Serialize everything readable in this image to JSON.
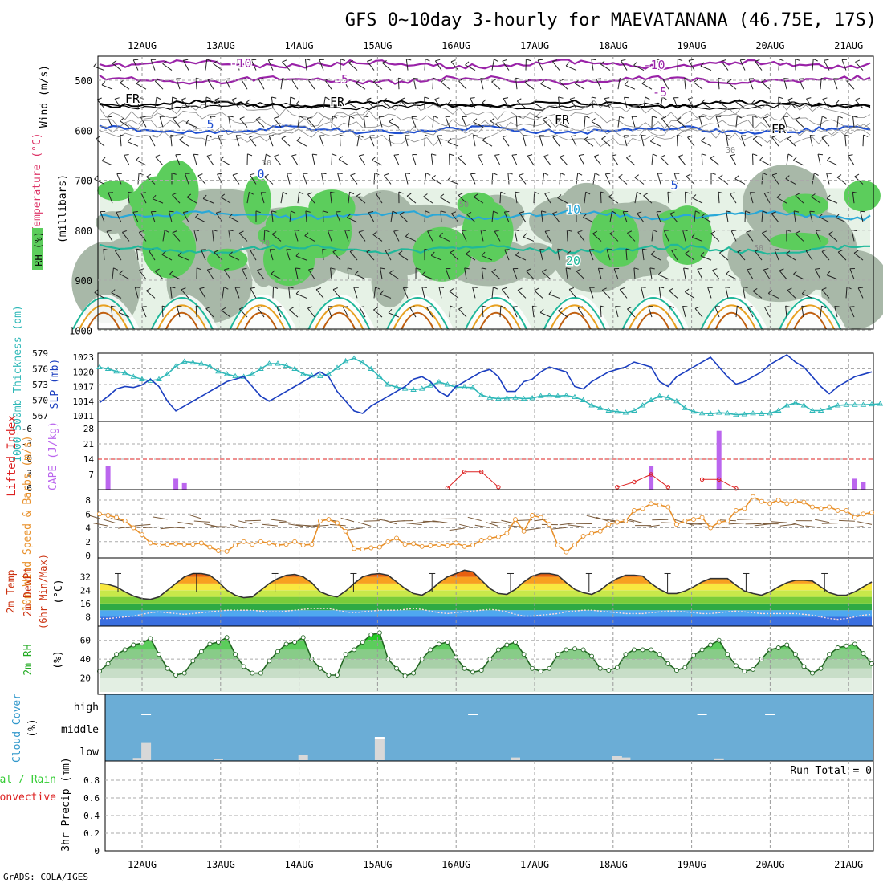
{
  "title": "GFS 0~10day 3-hourly for MAEVATANANA (46.75E, 17S)",
  "footer": "GrADS: COLA/IGES",
  "dates": [
    "12AUG",
    "13AUG",
    "14AUG",
    "15AUG",
    "16AUG",
    "17AUG",
    "18AUG",
    "19AUG",
    "20AUG",
    "21AUG"
  ],
  "colors": {
    "rh_green": "#5ccd5c",
    "rh_gray": "#a8b8a8",
    "rh_pale": "#e6f2e6",
    "temp_purple": "#9a23a8",
    "fr_black": "#000000",
    "temp_blue": "#1f4fd0",
    "temp_cyan": "#29a8d8",
    "temp_teal": "#20b89a",
    "temp_orange": "#e8a020",
    "slp": "#1c3fc0",
    "thickness": "#2fb8b8",
    "cape": "#bb66ee",
    "li": "#dd2222",
    "wind": "#e8902a",
    "barb": "#7a5a3a",
    "cloud": "#6badd6",
    "cloud_bar": "#d8d8d8"
  },
  "chart_data": [
    {
      "type": "heatmap",
      "panel": "upper",
      "ylabel": "(millibars)",
      "side_labels": [
        "Wind (m/s)",
        "Temperature (°C)",
        "RH (%)"
      ],
      "y_ticks": [
        500,
        600,
        700,
        800,
        900,
        1000
      ],
      "ylim": [
        1000,
        450
      ],
      "contour_labels": [
        "-10",
        "-5",
        "FR",
        "5",
        "10",
        "20",
        "0",
        "30",
        "50",
        "70"
      ],
      "isotherms": [
        {
          "label": "-10",
          "level_mb": 468
        },
        {
          "label": "-5",
          "level_mb": 500
        },
        {
          "label": "FR",
          "level_mb": 548
        },
        {
          "label": "5",
          "level_mb": 600
        },
        {
          "label": "10",
          "level_mb": 770
        },
        {
          "label": "20",
          "level_mb": 838
        }
      ]
    },
    {
      "type": "line",
      "panel": "pressure",
      "ylabel_left": "1000-500mb Thickness (dm)",
      "ylabel_right": "SLP (mb)",
      "y_left_ticks": [
        567,
        570,
        573,
        576,
        579
      ],
      "y_right_ticks": [
        1011,
        1014,
        1017,
        1020,
        1023
      ],
      "series": [
        {
          "name": "SLP",
          "values": [
            1013.7,
            1015,
            1016.5,
            1017,
            1016.8,
            1017.3,
            1018.5,
            1017,
            1014,
            1012,
            1013,
            1014,
            1015,
            1016,
            1017,
            1018,
            1018.5,
            1019,
            1017,
            1015,
            1014,
            1015,
            1016,
            1017,
            1018,
            1019,
            1020,
            1019,
            1016,
            1014,
            1012,
            1011.5,
            1013,
            1014,
            1015,
            1016,
            1017,
            1018.5,
            1019,
            1018,
            1016,
            1015,
            1017,
            1018,
            1019,
            1020,
            1020.5,
            1019,
            1016,
            1016,
            1018,
            1018.5,
            1020,
            1021,
            1020.5,
            1020,
            1017,
            1016.5,
            1018,
            1019,
            1020,
            1020.5,
            1021,
            1022,
            1021.5,
            1021,
            1018,
            1017,
            1019,
            1020,
            1021,
            1022,
            1023,
            1021,
            1019,
            1017.5,
            1018,
            1019,
            1020,
            1021.5,
            1022.5,
            1023.5,
            1022,
            1021,
            1019,
            1017,
            1015.5,
            1017,
            1018,
            1019,
            1019.5,
            1020,
            1020
          ]
        },
        {
          "name": "Thickness",
          "values": [
            576.3,
            576,
            575.5,
            575.2,
            574.5,
            574,
            573.7,
            574,
            575,
            576.5,
            577.4,
            577.2,
            577,
            576.5,
            575.5,
            575,
            574.6,
            574.5,
            575,
            576,
            577,
            577,
            576.6,
            576,
            575,
            574.7,
            574.6,
            575,
            576.2,
            577.5,
            578,
            577.2,
            576,
            574.5,
            573,
            572.5,
            572.2,
            572,
            572.2,
            572.8,
            573.5,
            573,
            572.5,
            572.5,
            572.4,
            571,
            570.5,
            570.3,
            570.4,
            570.5,
            570.3,
            570.4,
            570.8,
            570.9,
            570.8,
            570.9,
            570.6,
            570,
            569,
            568.5,
            568,
            567.8,
            567.6,
            568,
            569,
            570,
            570.8,
            570.5,
            569.8,
            568.5,
            567.8,
            567.5,
            567.4,
            567.6,
            567.5,
            567.2,
            567.3,
            567.5,
            567.4,
            567.5,
            568,
            569,
            569.5,
            569,
            568,
            568,
            568.5,
            569,
            569.1,
            569.1,
            569.1,
            569.2,
            569.3
          ]
        }
      ]
    },
    {
      "type": "bar",
      "panel": "cape_li",
      "ylabel_left": "Lifted Index",
      "ylabel_right": "CAPE (J/kg)",
      "y_left_ticks": [
        "-6",
        "-3",
        "0",
        "3",
        "6"
      ],
      "y_right_ticks": [
        7,
        14,
        21,
        28
      ],
      "series": [
        {
          "name": "CAPE",
          "values": [
            {
              "x": 0.5,
              "v": 11
            },
            {
              "x": 4.5,
              "v": 5
            },
            {
              "x": 5.0,
              "v": 3
            },
            {
              "x": 32.5,
              "v": 11
            },
            {
              "x": 36.5,
              "v": 27
            },
            {
              "x": 44.5,
              "v": 5
            },
            {
              "x": 45.0,
              "v": 3.5
            }
          ]
        },
        {
          "name": "Lifted Index",
          "values": [
            {
              "x": 21,
              "v": 5.7
            },
            {
              "x": 22,
              "v": 2.5
            },
            {
              "x": 23,
              "v": 2.5
            },
            {
              "x": 24,
              "v": 5.5
            },
            {
              "x": 31,
              "v": 5.5
            },
            {
              "x": 32,
              "v": 4.5
            },
            {
              "x": 33,
              "v": 3.0
            },
            {
              "x": 34,
              "v": 5.5
            },
            {
              "x": 36,
              "v": 4.0
            },
            {
              "x": 37,
              "v": 4.0
            },
            {
              "x": 38,
              "v": 5.8
            }
          ]
        }
      ]
    },
    {
      "type": "line",
      "panel": "wind",
      "ylabel": "10m Wind Speed & Barbs (m/s)",
      "y_ticks": [
        0,
        2,
        4,
        6,
        8
      ],
      "ylim": [
        0,
        9
      ],
      "series": [
        {
          "name": "Wind speed",
          "values": [
            6,
            5.8,
            5.5,
            5,
            4,
            3,
            1.8,
            1.5,
            1.6,
            1.7,
            1.6,
            1.6,
            1.8,
            1.2,
            0.7,
            0.6,
            1.5,
            2,
            1.6,
            2,
            1.8,
            1.5,
            1.6,
            2,
            1.5,
            1.6,
            5,
            5.2,
            4.7,
            3.5,
            1,
            0.9,
            1.1,
            1.2,
            2,
            2.5,
            1.6,
            1.7,
            1.3,
            1.4,
            1.6,
            1.4,
            1.8,
            1.3,
            1.5,
            2.2,
            2.5,
            2.7,
            3.2,
            5.2,
            3.5,
            5.8,
            5.5,
            4.5,
            1.5,
            0.5,
            1.5,
            2.8,
            3.2,
            3.5,
            4.5,
            4.8,
            5,
            6.5,
            6.8,
            7.5,
            7.3,
            7,
            4.5,
            5,
            5.2,
            5.5,
            4,
            4.8,
            5,
            6.5,
            6.8,
            8.5,
            7.8,
            7.5,
            8,
            7.5,
            7.8,
            7.7,
            7,
            6.8,
            7,
            6.5,
            6.5,
            5.5,
            6,
            6.2
          ]
        }
      ]
    },
    {
      "type": "area",
      "panel": "temperature",
      "ylabel": "2m Temp 2m DewPt (6hr Min/Max) (°C)",
      "y_ticks": [
        8,
        16,
        24,
        32
      ],
      "ylim": [
        2,
        40
      ],
      "series": [
        {
          "name": "2m Temp",
          "values": [
            28,
            27.5,
            26,
            23,
            20.5,
            19,
            18.5,
            20,
            24,
            28,
            32,
            34,
            34,
            33,
            29,
            24,
            21,
            19.5,
            20,
            24,
            28,
            31,
            33,
            33.5,
            32,
            28.5,
            23,
            21,
            20,
            23.5,
            28,
            32,
            33.5,
            34,
            33,
            29,
            25,
            22,
            21,
            24,
            28.5,
            32,
            34,
            36,
            35,
            30,
            25,
            22,
            21.5,
            24.5,
            29,
            32.5,
            34,
            34,
            33,
            28.5,
            24.5,
            22.5,
            21.5,
            24,
            28,
            31,
            33,
            33,
            32.5,
            28,
            24.5,
            22,
            22,
            23.5,
            26,
            29,
            31,
            31,
            31,
            27,
            23.5,
            22,
            21,
            23,
            26,
            28.5,
            30,
            30,
            29.5,
            26,
            22.5,
            21,
            21,
            23,
            26,
            29,
            31,
            31.5,
            30,
            27,
            23,
            21,
            20,
            20.5,
            22
          ]
        },
        {
          "name": "2m DewPt",
          "values": [
            7,
            7,
            7.5,
            8,
            8.5,
            9.5,
            10.5,
            11,
            10.5,
            10,
            9.5,
            10,
            10.5,
            11,
            11.5,
            12,
            12,
            12,
            12,
            11.5,
            11,
            11,
            11.5,
            12,
            12.5,
            13,
            13,
            13,
            12,
            11,
            10.5,
            11,
            11.5,
            12,
            12,
            12,
            12.5,
            13,
            12.5,
            11.5,
            10.5,
            10,
            10.5,
            11,
            11.5,
            12,
            12.5,
            12,
            11,
            9.5,
            8.5,
            8.5,
            9,
            9.5,
            10,
            11,
            11.5,
            12,
            12,
            11.5,
            11,
            10.5,
            10,
            10,
            10,
            10.5,
            11,
            11.5,
            11.5,
            11,
            10.5,
            10,
            10,
            10.5,
            11,
            11.5,
            11,
            10.5,
            10,
            10,
            10,
            10,
            10,
            9.5,
            9,
            8,
            7,
            6.5,
            7,
            8,
            9,
            9.5,
            10,
            10.5,
            11,
            11,
            11,
            11,
            10,
            9,
            9
          ]
        }
      ]
    },
    {
      "type": "area",
      "panel": "rh",
      "ylabel": "2m RH (%)",
      "y_ticks": [
        20,
        40,
        60
      ],
      "ylim": [
        5,
        70
      ],
      "series": [
        {
          "name": "2m RH",
          "values": [
            27,
            35,
            45,
            50,
            55,
            57,
            62,
            45,
            30,
            23,
            25,
            38,
            48,
            56,
            58,
            63,
            45,
            32,
            25,
            25,
            38,
            48,
            56,
            58,
            63,
            40,
            30,
            23,
            23,
            45,
            50,
            58,
            66,
            68,
            40,
            30,
            22,
            25,
            40,
            50,
            56,
            58,
            42,
            30,
            26,
            28,
            40,
            50,
            55,
            58,
            45,
            30,
            27,
            30,
            45,
            50,
            51,
            50,
            43,
            30,
            28,
            31,
            45,
            50,
            50,
            50,
            45,
            35,
            28,
            31,
            44,
            50,
            55,
            60,
            45,
            33,
            27,
            29,
            40,
            50,
            52,
            55,
            45,
            32,
            25,
            30,
            45,
            52,
            54,
            56,
            46,
            35
          ]
        }
      ]
    },
    {
      "type": "bar",
      "panel": "cloud",
      "ylabel": "Cloud Cover (%)",
      "y_labels": [
        "high",
        "middle",
        "low"
      ],
      "low_bars": [
        {
          "x": 4.5,
          "v": 10
        },
        {
          "x": 5.5,
          "v": 80
        },
        {
          "x": 14,
          "v": 5
        },
        {
          "x": 24,
          "v": 25
        },
        {
          "x": 33,
          "v": 100
        },
        {
          "x": 49,
          "v": 12
        },
        {
          "x": 61,
          "v": 18
        },
        {
          "x": 62,
          "v": 12
        },
        {
          "x": 73,
          "v": 8
        }
      ],
      "high_marks": [
        5.5,
        44,
        71,
        79
      ],
      "mid_marks": [
        33
      ]
    },
    {
      "type": "bar",
      "panel": "precip",
      "ylabel": "3hr Precip (mm)",
      "side_labels": [
        "Total / Rain",
        "Convective"
      ],
      "y_ticks": [
        "0",
        "0.2",
        "0.4",
        "0.6",
        "0.8"
      ],
      "ylim": [
        0,
        1
      ],
      "annotation": "Run Total = 0",
      "values": []
    }
  ]
}
